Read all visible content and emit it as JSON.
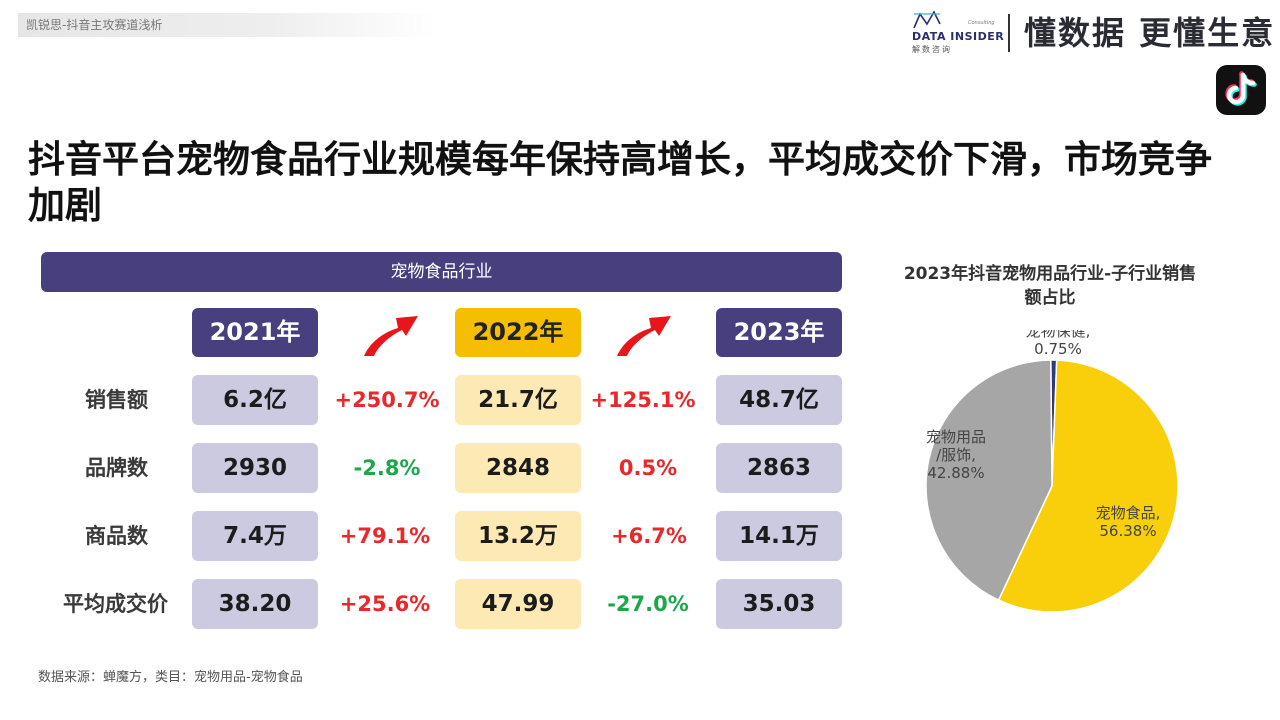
{
  "top_tag": "凯锐思-抖音主攻赛道浅析",
  "brand": {
    "logo_name": "DATA INSIDER",
    "logo_cn": "解数咨询",
    "logo_consulting": "Consulting",
    "slogan": "懂数据 更懂生意",
    "tiktok_icon": "tiktok-icon"
  },
  "page_title": "抖音平台宠物食品行业规模每年保持高增长，平均成交价下滑，市场竞争加剧",
  "table": {
    "header": "宠物食品行业",
    "years": [
      "2021年",
      "2022年",
      "2023年"
    ],
    "rows": [
      {
        "label": "销售额",
        "values": [
          "6.2亿",
          "21.7亿",
          "48.7亿"
        ],
        "changes": [
          "+250.7%",
          "+125.1%"
        ]
      },
      {
        "label": "品牌数",
        "values": [
          "2930",
          "2848",
          "2863"
        ],
        "changes": [
          "-2.8%",
          "0.5%"
        ]
      },
      {
        "label": "商品数",
        "values": [
          "7.4万",
          "13.2万",
          "14.1万"
        ],
        "changes": [
          "+79.1%",
          "+6.7%"
        ]
      },
      {
        "label": "平均成交价",
        "values": [
          "38.20",
          "47.99",
          "35.03"
        ],
        "changes": [
          "+25.6%",
          "-27.0%"
        ]
      }
    ],
    "colors": {
      "header": "#473f7e",
      "year_purple": "#473f7e",
      "year_gold": "#f6be00",
      "cell_lavender": "#cccae1",
      "cell_cream": "#fde9b4",
      "up": "#e8282b",
      "down": "#1aa84b"
    }
  },
  "chart_data": {
    "type": "pie",
    "title": "2023年抖音宠物用品行业-子行业销售额占比",
    "slices": [
      {
        "label": "宠物食品,",
        "pct": "56.38%",
        "value": 56.38,
        "color": "#f8cf0a"
      },
      {
        "label": "宠物用品/服饰,",
        "pct": "42.88%",
        "value": 42.88,
        "color": "#a6a6a6"
      },
      {
        "label": "宠物保健,",
        "pct": "0.75%",
        "value": 0.75,
        "color": "#2f3a7a"
      }
    ]
  },
  "source": "数据来源：蝉魔方，类目：宠物用品-宠物食品"
}
